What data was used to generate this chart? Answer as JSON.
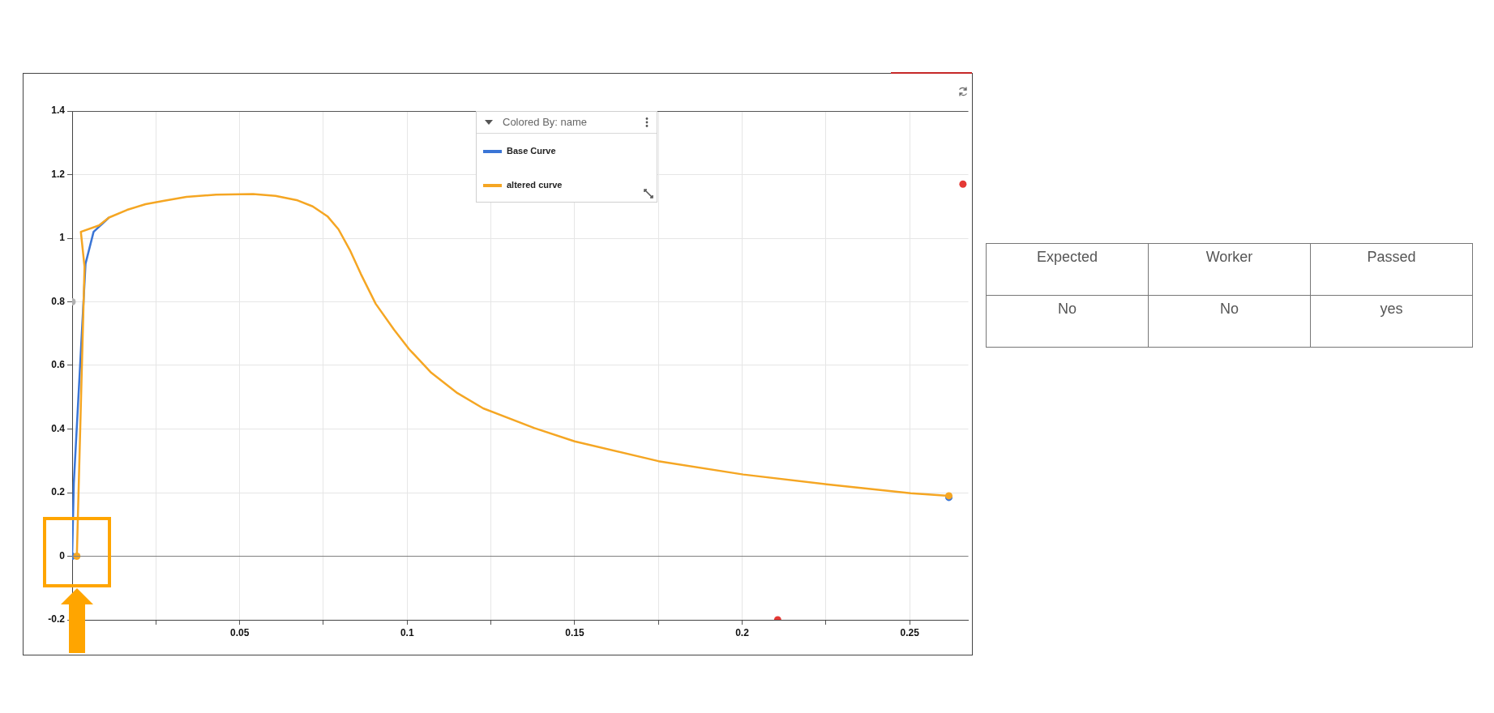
{
  "chart_data": [
    {
      "type": "line",
      "legend": "top",
      "legend_title": "Colored By: name",
      "grid": true,
      "line_style": "solid",
      "xlim": [
        0,
        0.2675
      ],
      "ylim": [
        -0.2,
        1.4
      ],
      "xticks": [
        {
          "value": 0,
          "label": null
        },
        {
          "value": 0.025,
          "label": null
        },
        0.05,
        {
          "value": 0.075,
          "label": null
        },
        0.1,
        {
          "value": 0.125,
          "label": null
        },
        0.15,
        {
          "value": 0.175,
          "label": null
        },
        0.2,
        {
          "value": 0.225,
          "label": null
        },
        0.25
      ],
      "yticks": [
        -0.2,
        0,
        0.2,
        0.4,
        0.6,
        0.8,
        1,
        1.2,
        1.4
      ],
      "ref_lines": [
        {
          "axis": "y",
          "value": 0,
          "color": "#7f7f7f"
        }
      ],
      "series": [
        {
          "name": "Base Curve",
          "type": "line",
          "marker": "none",
          "color": "#3a75d6",
          "x": [
            0,
            0.0005,
            0.004,
            0.0064,
            0.011
          ],
          "values": [
            0,
            0.23,
            0.92,
            1.02,
            1.065
          ]
        },
        {
          "name": "altered curve",
          "type": "line",
          "marker": "none",
          "color": "#f5a623",
          "x": [
            0.0014,
            0.0037,
            0.0026,
            0.008,
            0.011,
            0.0164,
            0.0219,
            0.0275,
            0.0341,
            0.043,
            0.054,
            0.0607,
            0.0673,
            0.0718,
            0.0762,
            0.0795,
            0.0829,
            0.0862,
            0.0906,
            0.0961,
            0.1006,
            0.1072,
            0.115,
            0.1227,
            0.138,
            0.15,
            0.175,
            0.2003,
            0.2252,
            0.2503,
            0.2617
          ],
          "values": [
            0,
            0.91,
            1.02,
            1.04,
            1.065,
            1.089,
            1.107,
            1.118,
            1.13,
            1.137,
            1.139,
            1.133,
            1.119,
            1.1,
            1.069,
            1.028,
            0.963,
            0.887,
            0.794,
            0.712,
            0.651,
            0.577,
            0.513,
            0.465,
            0.403,
            0.361,
            0.299,
            0.257,
            0.226,
            0.198,
            0.19
          ]
        },
        {
          "type": "scatter",
          "marker": "circle",
          "x": [
            0,
            0.0014,
            0.2617,
            0.2617,
            0.2659,
            0.2106,
            0
          ],
          "values": [
            0,
            0,
            0.185,
            0.19,
            1.17,
            -0.2,
            0.8
          ],
          "colors": [
            "#3a75d6",
            "#f5a623",
            "#3a75d6",
            "#f5a623",
            "#e53935",
            "#e53935",
            "#b0b0b0"
          ]
        }
      ]
    },
    {
      "type": "other",
      "annotations": [
        "Expected",
        "Worker",
        "Passed",
        "No",
        "No",
        "yes"
      ]
    }
  ]
}
